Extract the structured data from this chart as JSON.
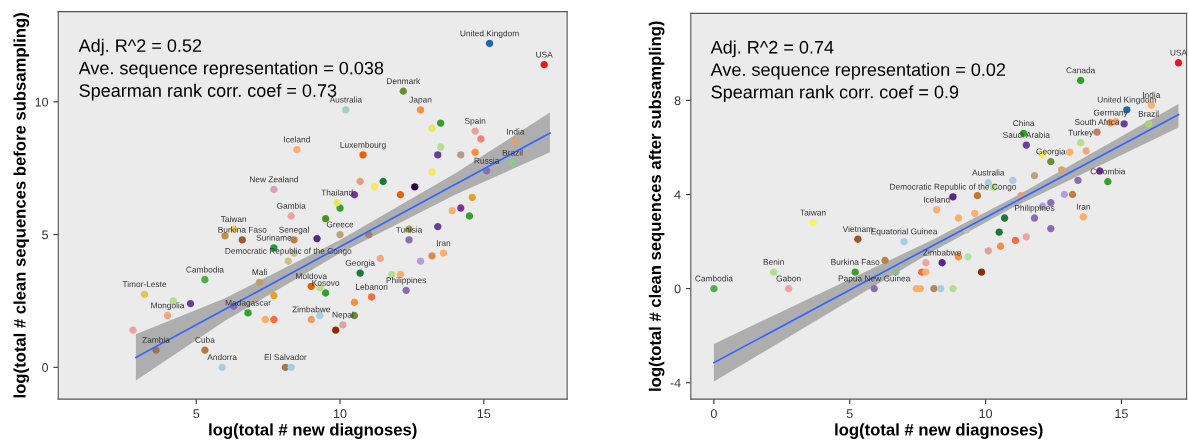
{
  "chart_data": [
    {
      "type": "scatter",
      "xlabel": "log(total # new diagnoses)",
      "ylabel": "log(total # clean sequences before subsampling)",
      "xlim": [
        0.2,
        17.9
      ],
      "ylim": [
        -1.2,
        13.4
      ],
      "xticks": [
        5,
        10,
        15
      ],
      "yticks": [
        0,
        5,
        10
      ],
      "grid": false,
      "series": [
        {
          "marker": "circle",
          "x": [
            15.2,
            17.1,
            12.2,
            12.8,
            10.2,
            13.5,
            13.2,
            14.7,
            14.9,
            16.1,
            8.5,
            10.8,
            14.7,
            13.5,
            13.4,
            14.2,
            16.0,
            15.1,
            7.7,
            10.0,
            8.3,
            10.7,
            11.5,
            12.1,
            12.6,
            13.2,
            13.9,
            14.2,
            14.6,
            14.5,
            13.4,
            12.4,
            8.4,
            9.2,
            6.6,
            7.7,
            12.4,
            13.6,
            13.2,
            12.8,
            11.4,
            5.3,
            7.2,
            3.2,
            4.2,
            4.8,
            4.0,
            2.8,
            3.6,
            5.3,
            5.9,
            8.1,
            8.3,
            7.7,
            7.4,
            9.0,
            10.1,
            9.85,
            6.8,
            12.3,
            11.1,
            9.5,
            9.3,
            10.5,
            10.5,
            10.7,
            12.1,
            11.8,
            9.3,
            9.0,
            7.7,
            8.4,
            9.9,
            11.0,
            10.5,
            11.2,
            9.5,
            9.9,
            10.0,
            8.2,
            6.3,
            6.0,
            6.3
          ],
          "values": [
            12.2,
            11.4,
            10.4,
            9.7,
            9.7,
            9.2,
            9.0,
            8.9,
            8.6,
            8.5,
            8.2,
            8.0,
            8.1,
            8.3,
            8.0,
            8.0,
            7.7,
            7.4,
            6.7,
            6.0,
            5.7,
            7.0,
            7.0,
            6.5,
            6.8,
            7.35,
            5.9,
            6.0,
            6.4,
            5.7,
            5.3,
            5.2,
            4.8,
            4.85,
            4.8,
            4.5,
            4.8,
            4.3,
            4.2,
            4.0,
            4.1,
            3.3,
            3.2,
            2.75,
            2.5,
            2.4,
            1.95,
            1.4,
            0.65,
            0.65,
            0.0,
            0.0,
            0.0,
            1.8,
            1.8,
            1.8,
            1.6,
            1.4,
            2.05,
            2.9,
            2.65,
            2.8,
            3.0,
            2.45,
            1.95,
            3.55,
            3.5,
            3.5,
            1.95,
            3.05,
            2.7,
            4.3,
            4.5,
            5.0,
            6.5,
            6.8,
            5.6,
            6.2,
            5.0,
            4.0,
            5.2,
            4.95,
            2.3
          ],
          "colors": [
            "#2166ac",
            "#e41a1c",
            "#6a8f3a",
            "#fd8d3c",
            "#a6cec3",
            "#33a02c",
            "#e6e65c",
            "#e8a0a0",
            "#f08070",
            "#d9a070",
            "#fdae6b",
            "#e66101",
            "#fd8d3c",
            "#b2df8a",
            "#6a3d9a",
            "#bc9a8a",
            "#8fc98f",
            "#8c6bb1",
            "#d8a0c0",
            "#33a02c",
            "#f4a0a0",
            "#e0a080",
            "#1b7837",
            "#e66101",
            "#2d004b",
            "#f6e85a",
            "#fdae6b",
            "#7b3294",
            "#e6a030",
            "#33a02c",
            "#6a3d9a",
            "#a0a040",
            "#c08040",
            "#542788",
            "#a05a2c",
            "#1b9e3b",
            "#8c6bb1",
            "#fdae6b",
            "#d98c4a",
            "#b39ddb",
            "#f4a582",
            "#4daf4a",
            "#c49a6c",
            "#e6c34c",
            "#b2df8a",
            "#6a3d9a",
            "#f4a582",
            "#f4a0a0",
            "#a07050",
            "#c07830",
            "#a6cee3",
            "#a07a50",
            "#a6cee3",
            "#f46d43",
            "#fdae6b",
            "#e6a070",
            "#e0a0a0",
            "#8c2d04",
            "#33a02c",
            "#8c6bb1",
            "#f46d43",
            "#33a02c",
            "#b2df8a",
            "#fd8d3c",
            "#6a8f3a",
            "#1b7837",
            "#fdae6b",
            "#b2df8a",
            "#a6cee3",
            "#e66101",
            "#e6a030",
            "#c0c0a0",
            "#bbbbbb",
            "#a08070",
            "#7b3294",
            "#f6e85a",
            "#4d9221",
            "#e6e65c",
            "#c0a070",
            "#d0c080",
            "#f0d060",
            "#c09040",
            "#8c6bb1"
          ]
        },
        {
          "type": "line",
          "color": "#3366ff",
          "x": [
            2.9,
            6,
            10,
            14,
            17.3
          ],
          "values": [
            0.37,
            2.19,
            4.54,
            6.89,
            8.82
          ],
          "lower": [
            -0.5,
            1.75,
            4.3,
            6.5,
            8.1
          ],
          "upper": [
            1.25,
            2.6,
            4.8,
            7.3,
            9.6
          ]
        }
      ],
      "annotations": [
        "Adj. R^2 = 0.52",
        "Ave. sequence representation = 0.038",
        "Spearman rank corr. coef = 0.73",
        {
          "text": "United Kingdom",
          "x": 15.2,
          "y": 12.2
        },
        {
          "text": "USA",
          "x": 17.1,
          "y": 11.4
        },
        {
          "text": "Denmark",
          "x": 12.2,
          "y": 10.4
        },
        {
          "text": "Japan",
          "x": 12.8,
          "y": 9.7
        },
        {
          "text": "Australia",
          "x": 10.2,
          "y": 9.7
        },
        {
          "text": "Spain",
          "x": 14.7,
          "y": 8.9
        },
        {
          "text": "India",
          "x": 16.1,
          "y": 8.5
        },
        {
          "text": "Iceland",
          "x": 8.5,
          "y": 8.2
        },
        {
          "text": "Luxembourg",
          "x": 10.8,
          "y": 8.0
        },
        {
          "text": "Brazil",
          "x": 16.0,
          "y": 7.7
        },
        {
          "text": "Russia",
          "x": 15.1,
          "y": 7.4
        },
        {
          "text": "New Zealand",
          "x": 7.7,
          "y": 6.7
        },
        {
          "text": "Thailand",
          "x": 9.9,
          "y": 6.2
        },
        {
          "text": "Democratic Republic of the Congo",
          "x": 8.2,
          "y": 4.0
        },
        {
          "text": "Gambia",
          "x": 8.3,
          "y": 5.7
        },
        {
          "text": "Taiwan",
          "x": 6.3,
          "y": 5.2
        },
        {
          "text": "Senegal",
          "x": 8.4,
          "y": 4.8
        },
        {
          "text": "Greece",
          "x": 10.0,
          "y": 5.0
        },
        {
          "text": "Burkina Faso",
          "x": 6.6,
          "y": 4.8
        },
        {
          "text": "Suriname",
          "x": 7.7,
          "y": 4.5
        },
        {
          "text": "Tunisia",
          "x": 12.4,
          "y": 4.8
        },
        {
          "text": "Iran",
          "x": 13.6,
          "y": 4.3
        },
        {
          "text": "Cambodia",
          "x": 5.3,
          "y": 3.3
        },
        {
          "text": "Mali",
          "x": 7.2,
          "y": 3.2
        },
        {
          "text": "Timor-Leste",
          "x": 3.2,
          "y": 2.75
        },
        {
          "text": "Mongolia",
          "x": 4.0,
          "y": 1.95
        },
        {
          "text": "Zambia",
          "x": 3.6,
          "y": 0.65
        },
        {
          "text": "Cuba",
          "x": 5.3,
          "y": 0.65
        },
        {
          "text": "Andorra",
          "x": 5.9,
          "y": 0.0
        },
        {
          "text": "El Salvador",
          "x": 8.1,
          "y": 0.0
        },
        {
          "text": "Moldova",
          "x": 9.0,
          "y": 3.05
        },
        {
          "text": "Zimbabwe",
          "x": 9.0,
          "y": 1.8
        },
        {
          "text": "Nepal",
          "x": 10.1,
          "y": 1.6
        },
        {
          "text": "Philippines",
          "x": 12.3,
          "y": 2.9
        },
        {
          "text": "Lebanon",
          "x": 11.1,
          "y": 2.65
        },
        {
          "text": "Kosovo",
          "x": 9.5,
          "y": 2.8
        },
        {
          "text": "Madagascar",
          "x": 6.8,
          "y": 2.05
        },
        {
          "text": "Georgia",
          "x": 10.7,
          "y": 3.55
        }
      ]
    },
    {
      "type": "scatter",
      "xlabel": "log(total # new diagnoses)",
      "ylabel": "log(total # clean sequences after subsampling)",
      "xlim": [
        -0.85,
        17.4
      ],
      "ylim": [
        -4.7,
        11.7
      ],
      "xticks": [
        0,
        5,
        10,
        15
      ],
      "yticks": [
        {
          "value": -4,
          "label": "-4"
        },
        0,
        4,
        8
      ],
      "grid": false,
      "series": [
        {
          "marker": "circle",
          "x": [
            17.1,
            13.5,
            16.1,
            15.2,
            16.0,
            15.1,
            14.6,
            14.8,
            11.4,
            14.1,
            13.5,
            14.5,
            14.2,
            13.4,
            13.6,
            13.2,
            12.9,
            10.1,
            8.2,
            3.65,
            5.3,
            2.2,
            0,
            2.75,
            5.9,
            5.2,
            6.7,
            8.4,
            9.85,
            7.45,
            7.6,
            8.1,
            8.35,
            8.8,
            7.8,
            7.65,
            7.8,
            9.0,
            9.35,
            10.1,
            10.55,
            11.1,
            11.5,
            12.4,
            10.7,
            11.8,
            12.4,
            13.1,
            12.1,
            11.5,
            11.8,
            11.0,
            10.3,
            9.7,
            11.3,
            12.1,
            9.6,
            9.0,
            12.4,
            12.8,
            13.7,
            10.5,
            8.8,
            9.3,
            7.0,
            6.3
          ],
          "values": [
            9.6,
            8.85,
            7.8,
            7.6,
            7.0,
            7.0,
            7.05,
            7.1,
            6.6,
            6.65,
            6.2,
            4.55,
            5.0,
            4.6,
            3.05,
            4.0,
            4.0,
            4.5,
            3.35,
            2.8,
            2.1,
            0.7,
            0,
            0,
            0,
            0.7,
            0.7,
            1.1,
            0.7,
            0,
            0,
            0,
            0,
            0,
            1.1,
            0.7,
            0.7,
            1.35,
            1.35,
            1.6,
            1.8,
            2.05,
            2.2,
            2.55,
            3.0,
            3.0,
            3.65,
            5.8,
            5.7,
            6.1,
            4.8,
            4.6,
            4.3,
            3.95,
            3.95,
            3.5,
            3.2,
            3.0,
            5.4,
            5.05,
            5.85,
            2.4,
            3.9,
            2.5,
            2.0,
            1.2
          ],
          "colors": [
            "#e41a1c",
            "#33a02c",
            "#fdae6b",
            "#2166ac",
            "#a6d96a",
            "#6a3d9a",
            "#fd8d3c",
            "#f4a582",
            "#33a02c",
            "#c08060",
            "#b2df8a",
            "#33a02c",
            "#7b3294",
            "#8c6bb1",
            "#fdae6b",
            "#c08040",
            "#b39ddb",
            "#a6cee3",
            "#fdae6b",
            "#f6f65c",
            "#a0522d",
            "#b2df8a",
            "#4daf4a",
            "#f4a0a0",
            "#8c6bb1",
            "#33a02c",
            "#8fbc8f",
            "#542788",
            "#8c2d04",
            "#fdae6b",
            "#fdae6b",
            "#b08a5a",
            "#a6cee3",
            "#b2df8a",
            "#f4a0a0",
            "#f46d43",
            "#fdae6b",
            "#fd8d3c",
            "#b2dfaa",
            "#e0a0a0",
            "#fd8d3c",
            "#f46d43",
            "#f4a0a0",
            "#8c6bb1",
            "#1b7837",
            "#8c6bb1",
            "#8c6bb1",
            "#fdae6b",
            "#f6e85a",
            "#6a3d9a",
            "#c0a080",
            "#a6cee3",
            "#b2df8a",
            "#c07830",
            "#e0a080",
            "#b39ddb",
            "#fdae6b",
            "#fdae6b",
            "#6a8f3a",
            "#d9a070",
            "#f4a582",
            "#1b7837",
            "#542788",
            "#c0c0a0",
            "#a6cee3",
            "#c08040"
          ]
        },
        {
          "type": "line",
          "color": "#3366ff",
          "x": [
            0,
            4,
            8,
            11,
            17.1
          ],
          "values": [
            -3.15,
            -0.68,
            1.79,
            3.64,
            7.4
          ],
          "lower": [
            -3.95,
            -1.2,
            1.55,
            3.45,
            6.85
          ],
          "upper": [
            -2.35,
            -0.15,
            2.05,
            3.85,
            7.85
          ]
        }
      ],
      "annotations": [
        "Adj. R^2 = 0.74",
        "Ave. sequence representation = 0.02",
        "Spearman rank corr. coef = 0.9",
        {
          "text": "USA",
          "x": 17.1,
          "y": 9.6
        },
        {
          "text": "Canada",
          "x": 13.5,
          "y": 8.85
        },
        {
          "text": "India",
          "x": 16.1,
          "y": 7.8
        },
        {
          "text": "United Kingdom",
          "x": 15.2,
          "y": 7.6
        },
        {
          "text": "Germany",
          "x": 14.6,
          "y": 7.05
        },
        {
          "text": "Brazil",
          "x": 16.0,
          "y": 7.0
        },
        {
          "text": "China",
          "x": 11.4,
          "y": 6.6
        },
        {
          "text": "South Africa",
          "x": 14.1,
          "y": 6.65
        },
        {
          "text": "Turkey",
          "x": 13.5,
          "y": 6.2
        },
        {
          "text": "Colombia",
          "x": 14.5,
          "y": 4.55
        },
        {
          "text": "Iran",
          "x": 13.6,
          "y": 3.05
        },
        {
          "text": "Australia",
          "x": 10.1,
          "y": 4.5
        },
        {
          "text": "Iceland",
          "x": 8.2,
          "y": 3.35
        },
        {
          "text": "Taiwan",
          "x": 3.65,
          "y": 2.8
        },
        {
          "text": "Democratic Republic of the Congo",
          "x": 8.8,
          "y": 3.9
        },
        {
          "text": "Vietnam",
          "x": 5.3,
          "y": 2.1
        },
        {
          "text": "Benin",
          "x": 2.2,
          "y": 0.7
        },
        {
          "text": "Cambodia",
          "x": 0,
          "y": 0
        },
        {
          "text": "Gabon",
          "x": 2.75,
          "y": 0
        },
        {
          "text": "Papua New Guinea",
          "x": 5.9,
          "y": 0
        },
        {
          "text": "Burkina Faso",
          "x": 5.2,
          "y": 0.7
        },
        {
          "text": "Zimbabwe",
          "x": 8.4,
          "y": 1.1
        },
        {
          "text": "Philippines",
          "x": 11.8,
          "y": 3.0
        },
        {
          "text": "Saudi Arabia",
          "x": 11.5,
          "y": 6.1
        },
        {
          "text": "Equatorial Guinea",
          "x": 7.0,
          "y": 2.0
        },
        {
          "text": "Georgia",
          "x": 12.4,
          "y": 5.4
        }
      ]
    }
  ]
}
